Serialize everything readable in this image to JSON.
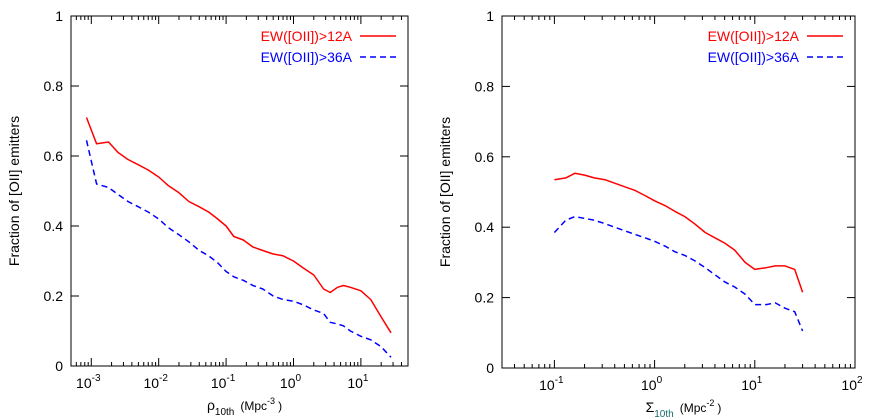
{
  "chart_data": [
    {
      "type": "line",
      "title": "",
      "xlabel": "ρ",
      "xlabel_sub": "10th",
      "xlabel_unit": "(Mpc",
      "xlabel_unit_sup": "-3",
      "xlabel_unit_close": ")",
      "ylabel": "Fraction of [OII] emitters",
      "xscale": "log",
      "xlim": [
        0.0005,
        50
      ],
      "ylim": [
        0,
        1
      ],
      "yticks": [
        "0",
        "0.2",
        "0.4",
        "0.6",
        "0.8",
        "1"
      ],
      "yticks_values": [
        0,
        0.2,
        0.4,
        0.6,
        0.8,
        1
      ],
      "xticks": [
        {
          "base": "10",
          "exp": "-3",
          "value": 0.001
        },
        {
          "base": "10",
          "exp": "-2",
          "value": 0.01
        },
        {
          "base": "10",
          "exp": "-1",
          "value": 0.1
        },
        {
          "base": "10",
          "exp": "0",
          "value": 1
        },
        {
          "base": "10",
          "exp": "1",
          "value": 10
        }
      ],
      "legend_position": "top-right",
      "series": [
        {
          "name": "EW([OII])>12A",
          "color": "#ff0000",
          "style": "solid",
          "x": [
            0.00085,
            0.0012,
            0.0018,
            0.0025,
            0.0035,
            0.005,
            0.007,
            0.01,
            0.014,
            0.02,
            0.028,
            0.04,
            0.055,
            0.075,
            0.1,
            0.13,
            0.18,
            0.25,
            0.35,
            0.5,
            0.7,
            1.0,
            1.4,
            2.0,
            2.8,
            3.5,
            4.5,
            5.5,
            7,
            10,
            14,
            20,
            28
          ],
          "y": [
            0.71,
            0.635,
            0.64,
            0.61,
            0.59,
            0.575,
            0.56,
            0.54,
            0.515,
            0.495,
            0.47,
            0.455,
            0.44,
            0.42,
            0.4,
            0.37,
            0.36,
            0.34,
            0.33,
            0.32,
            0.315,
            0.3,
            0.28,
            0.26,
            0.22,
            0.21,
            0.225,
            0.23,
            0.225,
            0.215,
            0.19,
            0.14,
            0.095
          ]
        },
        {
          "name": "EW([OII])>36A",
          "color": "#0000ff",
          "style": "dashed",
          "x": [
            0.00085,
            0.0012,
            0.0018,
            0.0025,
            0.0035,
            0.005,
            0.007,
            0.01,
            0.014,
            0.02,
            0.028,
            0.04,
            0.055,
            0.075,
            0.1,
            0.13,
            0.18,
            0.25,
            0.35,
            0.5,
            0.7,
            1.0,
            1.4,
            2.0,
            2.8,
            3.5,
            4.5,
            5.5,
            7,
            10,
            14,
            20,
            28
          ],
          "y": [
            0.645,
            0.52,
            0.51,
            0.49,
            0.47,
            0.455,
            0.44,
            0.42,
            0.395,
            0.375,
            0.355,
            0.33,
            0.315,
            0.295,
            0.27,
            0.255,
            0.245,
            0.23,
            0.22,
            0.2,
            0.19,
            0.185,
            0.175,
            0.16,
            0.15,
            0.125,
            0.12,
            0.115,
            0.1,
            0.085,
            0.075,
            0.055,
            0.025
          ]
        }
      ]
    },
    {
      "type": "line",
      "title": "",
      "xlabel": "Σ",
      "xlabel_sub": "10th",
      "xlabel_unit": "(Mpc",
      "xlabel_unit_sup": "-2",
      "xlabel_unit_close": ")",
      "ylabel": "Fraction of [OII] emitters",
      "xscale": "log",
      "xlim": [
        0.03,
        100
      ],
      "ylim": [
        0,
        1
      ],
      "yticks": [
        "0",
        "0.2",
        "0.4",
        "0.6",
        "0.8",
        "1"
      ],
      "yticks_values": [
        0,
        0.2,
        0.4,
        0.6,
        0.8,
        1
      ],
      "xticks": [
        {
          "base": "10",
          "exp": "-1",
          "value": 0.1
        },
        {
          "base": "10",
          "exp": "0",
          "value": 1
        },
        {
          "base": "10",
          "exp": "1",
          "value": 10
        },
        {
          "base": "10",
          "exp": "2",
          "value": 100
        }
      ],
      "legend_position": "top-right",
      "series": [
        {
          "name": "EW([OII])>12A",
          "color": "#ff0000",
          "style": "solid",
          "x": [
            0.1,
            0.13,
            0.16,
            0.2,
            0.25,
            0.32,
            0.4,
            0.5,
            0.63,
            0.8,
            1.0,
            1.3,
            1.6,
            2.0,
            2.5,
            3.2,
            4.0,
            5.0,
            6.3,
            8.0,
            10,
            13,
            16,
            20,
            25,
            30
          ],
          "y": [
            0.535,
            0.54,
            0.553,
            0.548,
            0.54,
            0.535,
            0.525,
            0.515,
            0.505,
            0.49,
            0.475,
            0.46,
            0.445,
            0.43,
            0.41,
            0.385,
            0.37,
            0.355,
            0.335,
            0.3,
            0.28,
            0.285,
            0.29,
            0.29,
            0.28,
            0.215
          ]
        },
        {
          "name": "EW([OII])>36A",
          "color": "#0000ff",
          "style": "dashed",
          "x": [
            0.1,
            0.13,
            0.16,
            0.2,
            0.25,
            0.32,
            0.4,
            0.5,
            0.63,
            0.8,
            1.0,
            1.3,
            1.6,
            2.0,
            2.5,
            3.2,
            4.0,
            5.0,
            6.3,
            8.0,
            10,
            13,
            16,
            20,
            25,
            30
          ],
          "y": [
            0.385,
            0.42,
            0.43,
            0.425,
            0.42,
            0.41,
            0.4,
            0.39,
            0.38,
            0.37,
            0.36,
            0.345,
            0.33,
            0.32,
            0.305,
            0.285,
            0.265,
            0.245,
            0.23,
            0.21,
            0.18,
            0.18,
            0.185,
            0.17,
            0.16,
            0.105
          ]
        }
      ]
    }
  ]
}
